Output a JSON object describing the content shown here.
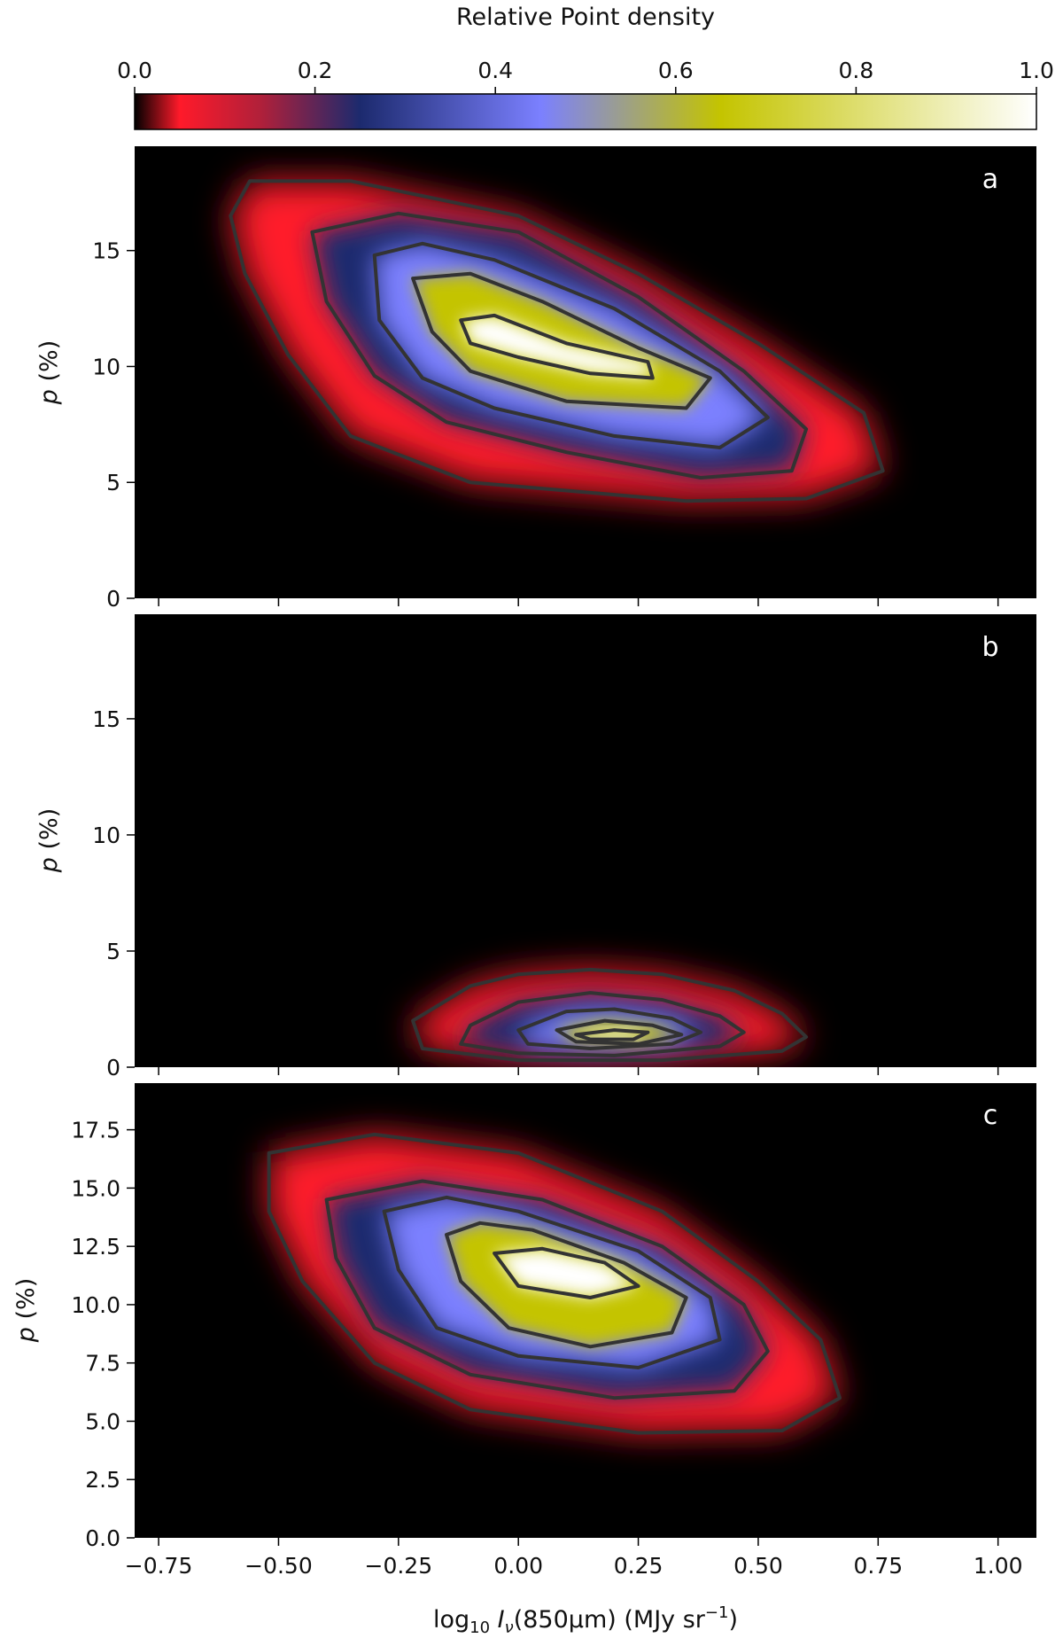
{
  "colorbar": {
    "label": "Relative Point density",
    "ticks": [
      "0.0",
      "0.2",
      "0.4",
      "0.6",
      "0.8",
      "1.0"
    ],
    "tick_values": [
      0.0,
      0.2,
      0.4,
      0.6,
      0.8,
      1.0
    ],
    "range": [
      0.0,
      1.0
    ],
    "colormap": "black-red-blue-yellow-white",
    "stops": [
      "#000000",
      "#ff1a2a",
      "#1c2a6e",
      "#7b80ff",
      "#c4c400",
      "#ffffff"
    ]
  },
  "xaxis": {
    "label_prefix": "log",
    "label_sub": "10",
    "label_I": "I",
    "label_nu": "ν",
    "label_rest": "(850μm) (MJy sr",
    "label_sup": "−1",
    "label_close": ")",
    "ticks": [
      "−0.75",
      "−0.50",
      "−0.25",
      "0.00",
      "0.25",
      "0.50",
      "0.75",
      "1.00"
    ],
    "tick_values": [
      -0.75,
      -0.5,
      -0.25,
      0.0,
      0.25,
      0.5,
      0.75,
      1.0
    ],
    "range": [
      -0.8,
      1.08
    ]
  },
  "ylabel": {
    "italic": "p",
    "rest": " (%)"
  },
  "chart_data": [
    {
      "type": "heatmap",
      "panel": "a",
      "xlim": [
        -0.8,
        1.08
      ],
      "ylim": [
        0,
        19.5
      ],
      "yticks": [
        "0",
        "5",
        "10",
        "15"
      ],
      "ytick_values": [
        0,
        5,
        10,
        15
      ],
      "peak": {
        "x": 0.0,
        "y": 11.0
      },
      "contour_levels": [
        0.05,
        0.2,
        0.4,
        0.6,
        0.8
      ],
      "contours": [
        [
          [
            -0.6,
            16.5
          ],
          [
            -0.57,
            14.0
          ],
          [
            -0.48,
            10.5
          ],
          [
            -0.35,
            7.0
          ],
          [
            -0.1,
            5.0
          ],
          [
            0.35,
            4.2
          ],
          [
            0.6,
            4.3
          ],
          [
            0.76,
            5.5
          ],
          [
            0.72,
            8.0
          ],
          [
            0.5,
            11.0
          ],
          [
            0.25,
            14.0
          ],
          [
            0.0,
            16.5
          ],
          [
            -0.35,
            18.0
          ],
          [
            -0.56,
            18.0
          ]
        ],
        [
          [
            -0.43,
            15.8
          ],
          [
            -0.4,
            12.8
          ],
          [
            -0.3,
            9.6
          ],
          [
            -0.15,
            7.6
          ],
          [
            0.1,
            6.3
          ],
          [
            0.38,
            5.2
          ],
          [
            0.57,
            5.5
          ],
          [
            0.6,
            7.3
          ],
          [
            0.47,
            9.8
          ],
          [
            0.25,
            13.0
          ],
          [
            0.0,
            15.8
          ],
          [
            -0.25,
            16.6
          ]
        ],
        [
          [
            -0.3,
            14.8
          ],
          [
            -0.29,
            12.0
          ],
          [
            -0.2,
            9.5
          ],
          [
            -0.05,
            8.2
          ],
          [
            0.2,
            7.0
          ],
          [
            0.42,
            6.5
          ],
          [
            0.52,
            7.8
          ],
          [
            0.42,
            9.8
          ],
          [
            0.2,
            12.5
          ],
          [
            -0.05,
            14.6
          ],
          [
            -0.2,
            15.3
          ]
        ],
        [
          [
            -0.22,
            13.8
          ],
          [
            -0.18,
            11.5
          ],
          [
            -0.1,
            9.8
          ],
          [
            0.1,
            8.5
          ],
          [
            0.35,
            8.2
          ],
          [
            0.4,
            9.5
          ],
          [
            0.25,
            10.8
          ],
          [
            0.05,
            12.8
          ],
          [
            -0.1,
            14.0
          ]
        ],
        [
          [
            -0.12,
            12.0
          ],
          [
            -0.1,
            11.0
          ],
          [
            0.0,
            10.4
          ],
          [
            0.15,
            9.7
          ],
          [
            0.28,
            9.5
          ],
          [
            0.27,
            10.2
          ],
          [
            0.1,
            11.0
          ],
          [
            -0.05,
            12.2
          ]
        ]
      ]
    },
    {
      "type": "heatmap",
      "panel": "b",
      "xlim": [
        -0.8,
        1.08
      ],
      "ylim": [
        0,
        19.5
      ],
      "yticks": [
        "0",
        "5",
        "10",
        "15"
      ],
      "ytick_values": [
        0,
        5,
        10,
        15
      ],
      "peak": {
        "x": 0.15,
        "y": 1.5
      },
      "contour_levels": [
        0.05,
        0.2,
        0.4,
        0.6,
        0.8
      ],
      "contours": [
        [
          [
            -0.22,
            2.0
          ],
          [
            -0.1,
            3.5
          ],
          [
            0.0,
            4.0
          ],
          [
            0.15,
            4.2
          ],
          [
            0.3,
            4.0
          ],
          [
            0.45,
            3.3
          ],
          [
            0.55,
            2.3
          ],
          [
            0.6,
            1.3
          ],
          [
            0.55,
            0.7
          ],
          [
            0.3,
            0.3
          ],
          [
            0.0,
            0.3
          ],
          [
            -0.2,
            0.8
          ]
        ],
        [
          [
            -0.1,
            1.8
          ],
          [
            0.0,
            2.8
          ],
          [
            0.15,
            3.2
          ],
          [
            0.3,
            2.9
          ],
          [
            0.42,
            2.2
          ],
          [
            0.47,
            1.5
          ],
          [
            0.42,
            0.9
          ],
          [
            0.2,
            0.5
          ],
          [
            0.0,
            0.6
          ],
          [
            -0.12,
            1.0
          ]
        ],
        [
          [
            0.0,
            1.6
          ],
          [
            0.1,
            2.4
          ],
          [
            0.2,
            2.5
          ],
          [
            0.32,
            2.1
          ],
          [
            0.38,
            1.5
          ],
          [
            0.32,
            1.0
          ],
          [
            0.15,
            0.8
          ],
          [
            0.02,
            1.0
          ]
        ],
        [
          [
            0.08,
            1.6
          ],
          [
            0.18,
            2.0
          ],
          [
            0.28,
            1.8
          ],
          [
            0.34,
            1.4
          ],
          [
            0.25,
            1.0
          ],
          [
            0.12,
            1.1
          ]
        ],
        [
          [
            0.12,
            1.4
          ],
          [
            0.2,
            1.6
          ],
          [
            0.27,
            1.5
          ],
          [
            0.24,
            1.2
          ],
          [
            0.15,
            1.2
          ]
        ]
      ]
    },
    {
      "type": "heatmap",
      "panel": "c",
      "xlim": [
        -0.8,
        1.08
      ],
      "ylim": [
        0,
        19.5
      ],
      "yticks": [
        "0.0",
        "2.5",
        "5.0",
        "7.5",
        "10.0",
        "12.5",
        "15.0",
        "17.5"
      ],
      "ytick_values": [
        0,
        2.5,
        5,
        7.5,
        10,
        12.5,
        15,
        17.5
      ],
      "peak": {
        "x": 0.0,
        "y": 11.5
      },
      "contour_levels": [
        0.05,
        0.2,
        0.4,
        0.6,
        0.8
      ],
      "contours": [
        [
          [
            -0.52,
            16.5
          ],
          [
            -0.52,
            14.0
          ],
          [
            -0.45,
            11.0
          ],
          [
            -0.3,
            7.5
          ],
          [
            -0.1,
            5.5
          ],
          [
            0.25,
            4.5
          ],
          [
            0.55,
            4.6
          ],
          [
            0.67,
            6.0
          ],
          [
            0.63,
            8.5
          ],
          [
            0.5,
            11.0
          ],
          [
            0.3,
            14.0
          ],
          [
            0.0,
            16.5
          ],
          [
            -0.3,
            17.3
          ]
        ],
        [
          [
            -0.4,
            14.5
          ],
          [
            -0.38,
            12.0
          ],
          [
            -0.3,
            9.0
          ],
          [
            -0.1,
            7.0
          ],
          [
            0.2,
            6.0
          ],
          [
            0.45,
            6.3
          ],
          [
            0.52,
            8.0
          ],
          [
            0.47,
            10.0
          ],
          [
            0.3,
            12.5
          ],
          [
            0.05,
            14.5
          ],
          [
            -0.2,
            15.3
          ]
        ],
        [
          [
            -0.28,
            14.0
          ],
          [
            -0.25,
            11.5
          ],
          [
            -0.17,
            9.0
          ],
          [
            0.0,
            7.8
          ],
          [
            0.25,
            7.3
          ],
          [
            0.42,
            8.5
          ],
          [
            0.4,
            10.3
          ],
          [
            0.25,
            12.3
          ],
          [
            0.0,
            14.0
          ],
          [
            -0.15,
            14.6
          ]
        ],
        [
          [
            -0.15,
            13.0
          ],
          [
            -0.12,
            11.0
          ],
          [
            -0.02,
            9.0
          ],
          [
            0.15,
            8.2
          ],
          [
            0.32,
            8.8
          ],
          [
            0.35,
            10.3
          ],
          [
            0.22,
            11.8
          ],
          [
            0.03,
            13.2
          ],
          [
            -0.08,
            13.5
          ]
        ],
        [
          [
            -0.05,
            12.2
          ],
          [
            0.0,
            10.8
          ],
          [
            0.15,
            10.3
          ],
          [
            0.25,
            10.8
          ],
          [
            0.18,
            11.8
          ],
          [
            0.05,
            12.4
          ]
        ]
      ]
    }
  ]
}
